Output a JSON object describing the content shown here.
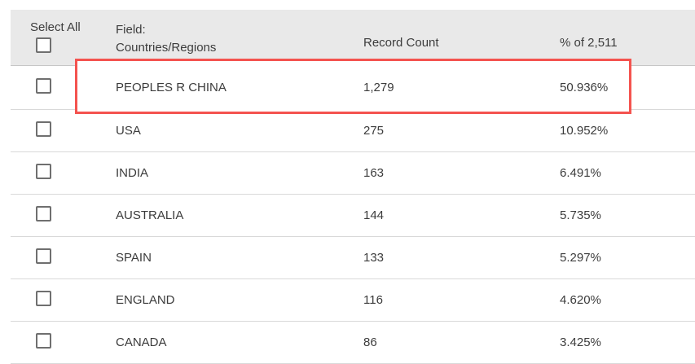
{
  "table": {
    "select_all_label": "Select All",
    "field_label": "Field:",
    "field_name": "Countries/Regions",
    "record_count_label": "Record Count",
    "percent_label": "% of 2,511",
    "total_records": "2,511",
    "rows": [
      {
        "name": "PEOPLES R CHINA",
        "count": "1,279",
        "percent": "50.936%",
        "highlighted": true,
        "checked": false
      },
      {
        "name": "USA",
        "count": "275",
        "percent": "10.952%",
        "highlighted": false,
        "checked": false
      },
      {
        "name": "INDIA",
        "count": "163",
        "percent": "6.491%",
        "highlighted": false,
        "checked": false
      },
      {
        "name": "AUSTRALIA",
        "count": "144",
        "percent": "5.735%",
        "highlighted": false,
        "checked": false
      },
      {
        "name": "SPAIN",
        "count": "133",
        "percent": "5.297%",
        "highlighted": false,
        "checked": false
      },
      {
        "name": "ENGLAND",
        "count": "116",
        "percent": "4.620%",
        "highlighted": false,
        "checked": false
      },
      {
        "name": "CANADA",
        "count": "86",
        "percent": "3.425%",
        "highlighted": false,
        "checked": false
      }
    ]
  },
  "colors": {
    "annotation_red": "#f4534f",
    "header_background": "#e9e9e9",
    "row_divider": "#d9d9d9",
    "header_divider": "#c6c6c6",
    "text": "#3c3c3c",
    "checkbox_border": "#6f6f6f"
  }
}
